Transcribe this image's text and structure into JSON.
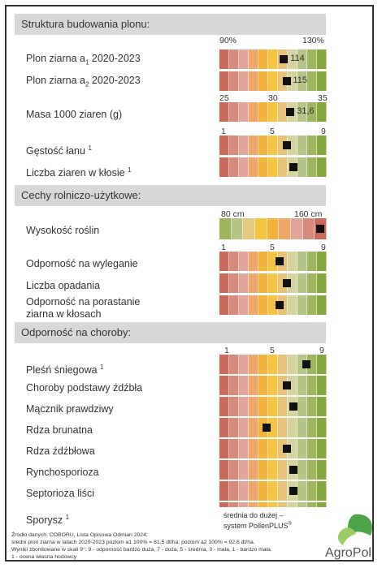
{
  "sections": [
    {
      "title": "Struktura budowania plonu:"
    },
    {
      "title": "Cechy rolniczo-użytkowe:"
    },
    {
      "title": "Odporność na choroby:"
    }
  ],
  "scales": [
    {
      "left": "90%",
      "right": "130%"
    },
    {
      "left": "25",
      "mid": "30",
      "right": "35"
    },
    {
      "left": "1",
      "mid": "5",
      "right": "9"
    },
    {
      "left": "80 cm",
      "right": "160 cm"
    },
    {
      "left": "1",
      "mid": "5",
      "right": "9"
    },
    {
      "left": "1",
      "mid": "5",
      "right": "9"
    }
  ],
  "rows": [
    {
      "label_main": "Plon ziarna a",
      "label_sub": "1",
      "label_tail": " 2020-2023",
      "value_label": "114"
    },
    {
      "label_main": "Plon ziarna a",
      "label_sub": "2",
      "label_tail": " 2020-2023",
      "value_label": "115"
    },
    {
      "label_main": "Masa 1000 ziaren (g)",
      "label_sub": "",
      "label_tail": "",
      "value_label": "31,6"
    },
    {
      "label_main": "Gęstość łanu ",
      "label_sup": "1"
    },
    {
      "label_main": "Liczba ziaren w kłosie ",
      "label_sup": "1"
    },
    {
      "label_main": "Wysokość roślin"
    },
    {
      "label_main": "Odporność na wyleganie"
    },
    {
      "label_main": "Liczba opadania"
    },
    {
      "label_main": "Odporność na porastanie ziarna w kłosach"
    },
    {
      "label_main": "Pleśń śniegowa ",
      "label_sup": "1"
    },
    {
      "label_main": "Choroby podstawy źdźbła"
    },
    {
      "label_main": "Mącznik prawdziwy"
    },
    {
      "label_main": "Rdza brunatna"
    },
    {
      "label_main": "Rdza źdźbłowa"
    },
    {
      "label_main": "Rynchosporioza"
    },
    {
      "label_main": "Septorioza liści"
    },
    {
      "label_main": "Sporysz ",
      "label_sup": "1"
    }
  ],
  "chart_data": {
    "type": "table",
    "rows": [
      {
        "name": "Plon ziarna a1 2020-2023",
        "value": 114,
        "min": 90,
        "max": 130
      },
      {
        "name": "Plon ziarna a2 2020-2023",
        "value": 115,
        "min": 90,
        "max": 130
      },
      {
        "name": "Masa 1000 ziaren (g)",
        "value": 31.6,
        "min": 25,
        "max": 35
      },
      {
        "name": "Gęstość łanu",
        "value": 6,
        "min": 1,
        "max": 9
      },
      {
        "name": "Liczba ziaren w kłosie",
        "value": 6.5,
        "min": 1,
        "max": 9
      },
      {
        "name": "Wysokość roślin",
        "value": 155,
        "min": 80,
        "max": 160
      },
      {
        "name": "Odporność na wyleganie",
        "value": 5.5,
        "min": 1,
        "max": 9
      },
      {
        "name": "Liczba opadania",
        "value": 6,
        "min": 1,
        "max": 9
      },
      {
        "name": "Odporność na porastanie ziarna w kłosach",
        "value": 5.5,
        "min": 1,
        "max": 9
      },
      {
        "name": "Pleśń śniegowa",
        "value": 7.5,
        "min": 1,
        "max": 9
      },
      {
        "name": "Choroby podstawy źdźbła",
        "value": 6,
        "min": 1,
        "max": 9
      },
      {
        "name": "Mącznik prawdziwy",
        "value": 6.5,
        "min": 1,
        "max": 9
      },
      {
        "name": "Rdza brunatna",
        "value": 4.5,
        "min": 1,
        "max": 9
      },
      {
        "name": "Rdza źdźbłowa",
        "value": 6,
        "min": 1,
        "max": 9
      },
      {
        "name": "Rynchosporioza",
        "value": 6.5,
        "min": 1,
        "max": 9
      },
      {
        "name": "Septorioza liści",
        "value": 6.5,
        "min": 1,
        "max": 9
      },
      {
        "name": "Sporysz",
        "value": null,
        "min": 1,
        "max": 9
      }
    ]
  },
  "palette_default": [
    "#c96a5a",
    "#d58a7a",
    "#e1a69a",
    "#f0a868",
    "#f3b33c",
    "#f5c542",
    "#e7c27a",
    "#d6d3a2",
    "#b6c585",
    "#9db65f",
    "#84a73f"
  ],
  "palette_height": [
    "#9db65f",
    "#b6c585",
    "#e6c980",
    "#f5c542",
    "#f3b33c",
    "#f0a868",
    "#e1a69a",
    "#d58a7a",
    "#c96a5a"
  ],
  "legend_text": [
    "średnia do dużej –",
    "system PollenPLUS"
  ],
  "legend_sup": "®",
  "footnotes": [
    "Źródło danych: COBORU, Lista Opisowa Odmian 2024;",
    "średni plon ziarna w latach 2020-2023 poziom a1 100% = 81,5 dt/ha; poziom a2 100% = 92,6 dt/ha.",
    "Wyniki zbonitowane w skali 9°: 9 - odporność bardzo duża, 7 - duża, 5 - średnia, 3 - mała, 1 - bardzo mała.",
    "1 - ocena własna hodowcy"
  ],
  "brand": {
    "name": "AgroPol",
    "green": "#4ea34a",
    "light_green": "#9ccc65"
  }
}
